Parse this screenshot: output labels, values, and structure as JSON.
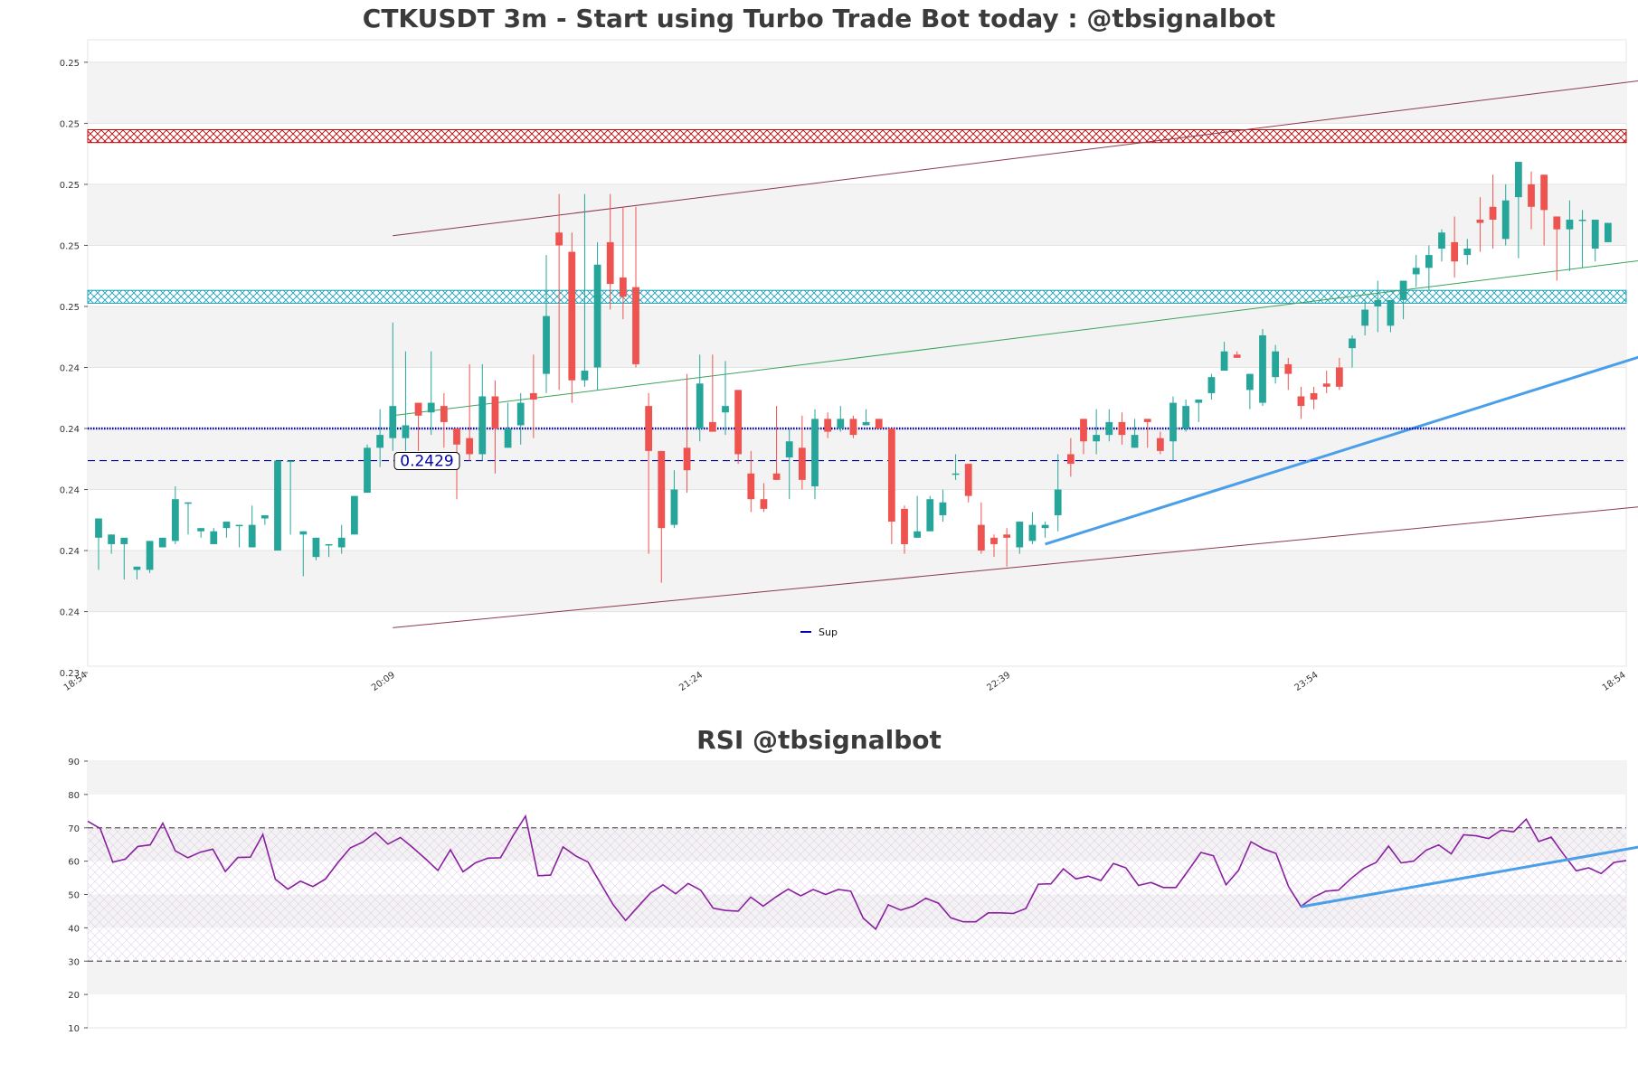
{
  "chart_data": [
    {
      "type": "candlestick",
      "title": "CTKUSDT 3m - Start using Turbo Trade Bot today : @tbsignalbot",
      "xlabel": "",
      "ylabel": "",
      "x_tick_labels": [
        "18:54",
        "20:09",
        "21:24",
        "22:39",
        "23:54",
        "18:54"
      ],
      "y_tick_labels": [
        "0.25",
        "0.25",
        "0.25",
        "0.25",
        "0.25",
        "0.24",
        "0.24",
        "0.24",
        "0.24",
        "0.24",
        "0.23"
      ],
      "ylim": [
        0.235,
        0.2545
      ],
      "y_ticks": [
        0.2538,
        0.2519,
        0.25,
        0.2481,
        0.2462,
        0.2443,
        0.2424,
        0.2405,
        0.2386,
        0.2367,
        0.2348
      ],
      "candles_ohlc": [
        [
          0.239,
          0.2396,
          0.2385,
          0.238
        ],
        [
          0.2388,
          0.2391,
          0.2386,
          0.2385
        ],
        [
          0.2388,
          0.239,
          0.238,
          0.2377
        ],
        [
          0.238,
          0.2381,
          0.2379,
          0.2377
        ],
        [
          0.238,
          0.2389,
          0.238,
          0.2379
        ],
        [
          0.2387,
          0.239,
          0.2389,
          0.2387
        ],
        [
          0.2389,
          0.2402,
          0.2406,
          0.2388
        ],
        [
          0.2401,
          0.2401,
          0.2392,
          0.2391
        ],
        [
          0.2392,
          0.2393,
          0.2386,
          0.239
        ],
        [
          0.2388,
          0.2392,
          0.2393,
          0.2388
        ],
        [
          0.2393,
          0.2395,
          0.239,
          0.239
        ],
        [
          0.2394,
          0.2394,
          0.2387,
          0.2387
        ],
        [
          0.2387,
          0.2394,
          0.24,
          0.2387
        ],
        [
          0.2396,
          0.2397,
          0.2395,
          0.2394
        ],
        [
          0.2386,
          0.2414,
          0.2414,
          0.2388
        ],
        [
          0.2414,
          0.2414,
          0.2391,
          0.2391
        ],
        [
          0.2391,
          0.2392,
          0.2383,
          0.2378
        ],
        [
          0.2384,
          0.239,
          0.239,
          0.2383
        ],
        [
          0.2388,
          0.2388,
          0.2385,
          0.2384
        ],
        [
          0.2387,
          0.239,
          0.2394,
          0.2385
        ],
        [
          0.2391,
          0.2403,
          0.2403,
          0.2391
        ],
        [
          0.2404,
          0.2418,
          0.2419,
          0.2404
        ],
        [
          0.2418,
          0.2422,
          0.243,
          0.2412
        ],
        [
          0.2421,
          0.2431,
          0.2457,
          0.2417
        ],
        [
          0.2421,
          0.2425,
          0.2448,
          0.2417
        ],
        [
          0.2432,
          0.2428,
          0.2432,
          0.2417
        ],
        [
          0.2429,
          0.2432,
          0.2448,
          0.2422
        ],
        [
          0.2431,
          0.2426,
          0.2435,
          0.2418
        ],
        [
          0.2424,
          0.2419,
          0.2424,
          0.2402
        ],
        [
          0.2421,
          0.2416,
          0.2444,
          0.2414
        ],
        [
          0.2416,
          0.2434,
          0.2444,
          0.2414
        ],
        [
          0.2434,
          0.2424,
          0.2439,
          0.241
        ],
        [
          0.2418,
          0.2424,
          0.2432,
          0.2418
        ],
        [
          0.2425,
          0.2432,
          0.2435,
          0.2419
        ],
        [
          0.2435,
          0.2433,
          0.2447,
          0.2421
        ],
        [
          0.2441,
          0.2459,
          0.2478,
          0.2435
        ],
        [
          0.2485,
          0.2481,
          0.2497,
          0.2436
        ],
        [
          0.2479,
          0.2439,
          0.2485,
          0.2432
        ],
        [
          0.2439,
          0.2442,
          0.2497,
          0.2437
        ],
        [
          0.2443,
          0.2475,
          0.2482,
          0.2436
        ],
        [
          0.2482,
          0.2469,
          0.2497,
          0.2461
        ],
        [
          0.2471,
          0.2465,
          0.2493,
          0.2458
        ],
        [
          0.2468,
          0.2444,
          0.2493,
          0.2443
        ],
        [
          0.2431,
          0.2417,
          0.2435,
          0.2385
        ],
        [
          0.2417,
          0.2393,
          0.2417,
          0.2376
        ],
        [
          0.2394,
          0.2405,
          0.2411,
          0.2393
        ],
        [
          0.2418,
          0.2411,
          0.2441,
          0.2404
        ],
        [
          0.2424,
          0.2438,
          0.2447,
          0.242
        ],
        [
          0.2426,
          0.2423,
          0.2447,
          0.2423
        ],
        [
          0.2429,
          0.2431,
          0.2445,
          0.2422
        ],
        [
          0.2436,
          0.2416,
          0.2429,
          0.2413
        ],
        [
          0.241,
          0.2402,
          0.2417,
          0.2398
        ],
        [
          0.2402,
          0.2399,
          0.2407,
          0.2398
        ],
        [
          0.241,
          0.2408,
          0.2431,
          0.2409
        ],
        [
          0.2415,
          0.242,
          0.2424,
          0.2402
        ],
        [
          0.2418,
          0.2408,
          0.2428,
          0.2405
        ],
        [
          0.2406,
          0.2427,
          0.243,
          0.2402
        ],
        [
          0.2427,
          0.2423,
          0.2429,
          0.2421
        ],
        [
          0.2424,
          0.2427,
          0.2431,
          0.2423
        ],
        [
          0.2427,
          0.2422,
          0.2428,
          0.2421
        ],
        [
          0.2425,
          0.2426,
          0.243,
          0.2426
        ],
        [
          0.2427,
          0.2424,
          0.2427,
          0.2424
        ],
        [
          0.2424,
          0.2395,
          0.2424,
          0.2388
        ],
        [
          0.2399,
          0.2388,
          0.24,
          0.2385
        ],
        [
          0.239,
          0.2392,
          0.2403,
          0.239
        ],
        [
          0.2392,
          0.2402,
          0.2403,
          0.2396
        ],
        [
          0.2397,
          0.2401,
          0.2405,
          0.2395
        ],
        [
          0.241,
          0.241,
          0.2416,
          0.2408
        ],
        [
          0.2413,
          0.2403,
          0.2412,
          0.2401
        ],
        [
          0.2394,
          0.2386,
          0.2401,
          0.2385
        ],
        [
          0.239,
          0.2388,
          0.2391,
          0.2384
        ],
        [
          0.2391,
          0.239,
          0.2393,
          0.2381
        ],
        [
          0.2387,
          0.2395,
          0.2395,
          0.2385
        ],
        [
          0.2389,
          0.2394,
          0.2398,
          0.2388
        ],
        [
          0.2393,
          0.2394,
          0.2395,
          0.239
        ],
        [
          0.2397,
          0.2405,
          0.2416,
          0.2392
        ],
        [
          0.2416,
          0.2413,
          0.2421,
          0.2409
        ],
        [
          0.2427,
          0.242,
          0.2425,
          0.2416
        ],
        [
          0.242,
          0.2422,
          0.243,
          0.2416
        ],
        [
          0.2422,
          0.2426,
          0.243,
          0.242
        ],
        [
          0.2426,
          0.2422,
          0.2429,
          0.2419
        ],
        [
          0.2418,
          0.2422,
          0.2427,
          0.2421
        ],
        [
          0.2427,
          0.2426,
          0.2427,
          0.2418
        ],
        [
          0.2421,
          0.2417,
          0.2423,
          0.2416
        ],
        [
          0.242,
          0.2432,
          0.2434,
          0.2414
        ],
        [
          0.2424,
          0.2431,
          0.2433,
          0.2423
        ],
        [
          0.2432,
          0.2433,
          0.2433,
          0.2426
        ],
        [
          0.2435,
          0.244,
          0.2441,
          0.2433
        ],
        [
          0.2442,
          0.2448,
          0.2451,
          0.2442
        ],
        [
          0.2447,
          0.2446,
          0.2448,
          0.2447
        ],
        [
          0.2436,
          0.2441,
          0.244,
          0.243
        ],
        [
          0.2432,
          0.2453,
          0.2455,
          0.2431
        ],
        [
          0.244,
          0.2448,
          0.245,
          0.2438
        ],
        [
          0.2444,
          0.2441,
          0.2446,
          0.2436
        ],
        [
          0.2434,
          0.2431,
          0.2437,
          0.2427
        ],
        [
          0.2435,
          0.2433,
          0.2437,
          0.243
        ],
        [
          0.2438,
          0.2437,
          0.2442,
          0.2435
        ],
        [
          0.2443,
          0.2437,
          0.2446,
          0.2436
        ],
        [
          0.2449,
          0.2452,
          0.2453,
          0.2443
        ],
        [
          0.2456,
          0.2461,
          0.2464,
          0.2453
        ],
        [
          0.2462,
          0.2464,
          0.247,
          0.2454
        ],
        [
          0.2456,
          0.2464,
          0.2463,
          0.2454
        ],
        [
          0.2464,
          0.247,
          0.2469,
          0.2458
        ],
        [
          0.2472,
          0.2474,
          0.2478,
          0.2468
        ],
        [
          0.2474,
          0.2478,
          0.2481,
          0.2467
        ],
        [
          0.248,
          0.2485,
          0.2486,
          0.2476
        ],
        [
          0.2482,
          0.2476,
          0.249,
          0.2471
        ],
        [
          0.2478,
          0.248,
          0.2483,
          0.2475
        ],
        [
          0.2489,
          0.2488,
          0.2496,
          0.2479
        ],
        [
          0.2493,
          0.2489,
          0.2503,
          0.248
        ],
        [
          0.2483,
          0.2495,
          0.25,
          0.2481
        ],
        [
          0.2496,
          0.2507,
          0.2507,
          0.2477
        ],
        [
          0.25,
          0.2493,
          0.2504,
          0.2486
        ],
        [
          0.2503,
          0.2492,
          0.2497,
          0.2481
        ],
        [
          0.249,
          0.2486,
          0.2486,
          0.247
        ],
        [
          0.2486,
          0.2489,
          0.2495,
          0.2473
        ],
        [
          0.2489,
          0.2489,
          0.2492,
          0.2474
        ],
        [
          0.248,
          0.2489,
          0.2488,
          0.2476
        ],
        [
          0.2482,
          0.2488,
          0.2487,
          0.2482
        ]
      ],
      "levels": [
        {
          "name": "Sup",
          "value": 0.2424,
          "style": "dotted",
          "color": "#0000aa"
        },
        {
          "name": "",
          "value": 0.2414,
          "style": "dashed",
          "color": "#0000aa"
        }
      ],
      "zones": [
        {
          "from": 0.2513,
          "to": 0.2517,
          "color": "#c00000"
        },
        {
          "from": 0.2463,
          "to": 0.2467,
          "color": "#1a9fb5"
        }
      ],
      "price_label": "0.2429",
      "legend": [
        {
          "name": "Sup",
          "color": "#0000aa"
        }
      ],
      "legend_position": "lower-center",
      "grid": "horizontal bands"
    },
    {
      "type": "line",
      "title": "RSI @tbsignalbot",
      "xlabel": "",
      "ylabel": "",
      "ylim": [
        10,
        90
      ],
      "y_ticks": [
        10,
        20,
        30,
        40,
        50,
        60,
        70,
        80,
        90
      ],
      "reference_lines": [
        70,
        30
      ],
      "series": [
        {
          "name": "",
          "color": "#8a1fa0",
          "values": [
            72.0,
            69.8,
            59.7,
            60.6,
            64.4,
            64.9,
            71.4,
            63.1,
            61.0,
            62.7,
            63.6,
            56.9,
            61.1,
            61.2,
            68.0,
            54.6,
            51.6,
            54.0,
            52.4,
            54.6,
            59.6,
            64.0,
            65.7,
            68.6,
            65.1,
            67.1,
            64.0,
            60.7,
            57.2,
            63.4,
            56.8,
            59.5,
            60.9,
            61.0,
            67.6,
            73.5,
            55.6,
            55.8,
            64.3,
            61.6,
            59.7,
            53.3,
            47.0,
            42.2,
            46.4,
            50.5,
            52.9,
            50.2,
            53.3,
            51.3,
            45.9,
            45.2,
            45.0,
            49.2,
            46.5,
            49.2,
            51.6,
            49.6,
            51.5,
            50.0,
            51.5,
            51.0,
            42.9,
            39.6,
            46.9,
            45.3,
            46.5,
            48.9,
            47.4,
            43.0,
            41.8,
            41.8,
            44.5,
            44.5,
            44.3,
            45.8,
            53.1,
            53.2,
            57.7,
            54.7,
            55.5,
            54.2,
            59.3,
            58.0,
            52.7,
            53.6,
            52.1,
            52.1,
            57.3,
            62.6,
            61.6,
            52.9,
            57.2,
            65.8,
            63.7,
            62.3,
            52.4,
            46.4,
            49.2,
            51.0,
            51.3,
            54.8,
            57.8,
            59.6,
            64.5,
            59.5,
            60.0,
            63.3,
            64.9,
            62.2,
            67.9,
            67.6,
            66.8,
            69.3,
            68.8,
            72.6,
            65.9,
            67.2,
            62.0,
            57.1,
            58.0,
            56.3,
            59.6,
            60.2
          ]
        }
      ],
      "trend_line": {
        "color": "#4a9fe8",
        "from_index": 97,
        "from_value": 46.3,
        "to_index": 125,
        "to_value": 64.9
      },
      "grid": "horizontal bands"
    }
  ]
}
